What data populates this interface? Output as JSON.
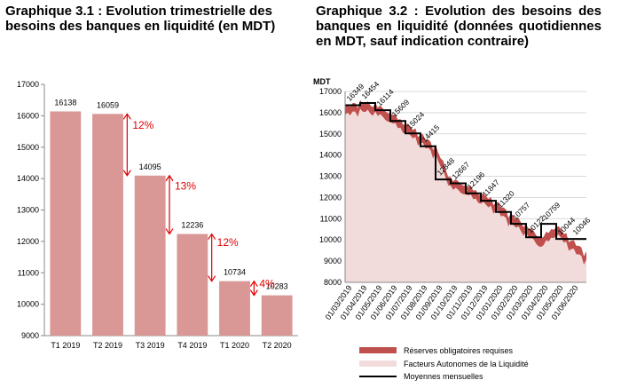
{
  "chart1_title": "Graphique 3.1 : Evolution trimestrielle des besoins des banques en liquidité (en MDT)",
  "chart2_title": "Graphique 3.2 : Evolution des besoins des banques en liquidité (données quotidiennes en MDT, sauf indication contraire)",
  "colors": {
    "bar": "#d99795",
    "arrow": "#e00000",
    "reserves": "#c0504d",
    "autonomous": "#f2dcdb",
    "monthly_avg": "#000000",
    "grid": "#d9d9d9"
  },
  "chart_data": [
    {
      "type": "bar",
      "categories": [
        "T1 2019",
        "T2 2019",
        "T3 2019",
        "T4 2019",
        "T1 2020",
        "T2 2020"
      ],
      "values": [
        16138,
        16059,
        14095,
        12236,
        10734,
        10283
      ],
      "value_labels": [
        "16138",
        "16059",
        "14095",
        "12236",
        "10734",
        "10283"
      ],
      "ylim": [
        9000,
        17000
      ],
      "yticks": [
        "9000",
        "10000",
        "11000",
        "12000",
        "13000",
        "14000",
        "15000",
        "16000",
        "17000"
      ],
      "grid": false,
      "annotations": [
        {
          "text": "12%",
          "from_category": "T2 2019",
          "from": 16059,
          "to": 14095
        },
        {
          "text": "13%",
          "from_category": "T3 2019",
          "from": 14095,
          "to": 12236
        },
        {
          "text": "12%",
          "from_category": "T4 2019",
          "from": 12236,
          "to": 10734
        },
        {
          "text": "4%",
          "from_category": "T1 2020",
          "from": 10734,
          "to": 10283
        }
      ]
    },
    {
      "type": "area",
      "ylabel": "MDT",
      "ylim": [
        8000,
        17000
      ],
      "yticks": [
        "8000",
        "9000",
        "10000",
        "11000",
        "12000",
        "13000",
        "14000",
        "15000",
        "16000",
        "17000"
      ],
      "xticks": [
        "01/03/2019",
        "01/04/2019",
        "01/05/2019",
        "01/06/2019",
        "01/07/2019",
        "01/08/2019",
        "01/09/2019",
        "01/10/2019",
        "01/11/2019",
        "01/12/2019",
        "01/01/2020",
        "01/02/2020",
        "01/03/2020",
        "01/04/2020",
        "01/05/2020",
        "01/06/2020"
      ],
      "grid": true,
      "legend_position": "bottom",
      "series": [
        {
          "name": "Réserves obligatoires requises",
          "style": "area",
          "x": [
            "01/03/2019",
            "01/04/2019",
            "01/05/2019",
            "01/06/2019",
            "01/07/2019",
            "01/08/2019",
            "01/09/2019",
            "01/10/2019",
            "01/11/2019",
            "01/12/2019",
            "01/01/2020",
            "01/02/2020",
            "01/03/2020",
            "01/04/2020",
            "01/05/2020",
            "01/06/2020",
            "30/06/2020"
          ],
          "values": [
            16300,
            16500,
            16400,
            16000,
            15500,
            15000,
            14400,
            12900,
            12600,
            12200,
            11800,
            11200,
            10700,
            10100,
            10700,
            10000,
            9400
          ]
        },
        {
          "name": "Facteurs Autonomes de la Liquidité",
          "style": "area",
          "x": [
            "01/03/2019",
            "01/04/2019",
            "01/05/2019",
            "01/06/2019",
            "01/07/2019",
            "01/08/2019",
            "01/09/2019",
            "01/10/2019",
            "01/11/2019",
            "01/12/2019",
            "01/01/2020",
            "01/02/2020",
            "01/03/2020",
            "01/04/2020",
            "01/05/2020",
            "01/06/2020",
            "30/06/2020"
          ],
          "values": [
            15900,
            16100,
            16000,
            15600,
            15100,
            14600,
            14000,
            12500,
            12200,
            11800,
            11400,
            10800,
            10300,
            9700,
            10300,
            9600,
            9000
          ]
        },
        {
          "name": "Moyennes mensuelles",
          "style": "step",
          "values": [
            16349,
            16454,
            16114,
            15609,
            15024,
            14415,
            12848,
            12667,
            12196,
            11847,
            11320,
            10757,
            10122,
            10759,
            10044,
            10046
          ],
          "labels": [
            "16349",
            "16454",
            "16114",
            "15609",
            "15024",
            "14415",
            "12848",
            "12667",
            "12196",
            "11847",
            "11320",
            "10757",
            "10122",
            "10759",
            "10044",
            "10046"
          ]
        }
      ]
    }
  ]
}
